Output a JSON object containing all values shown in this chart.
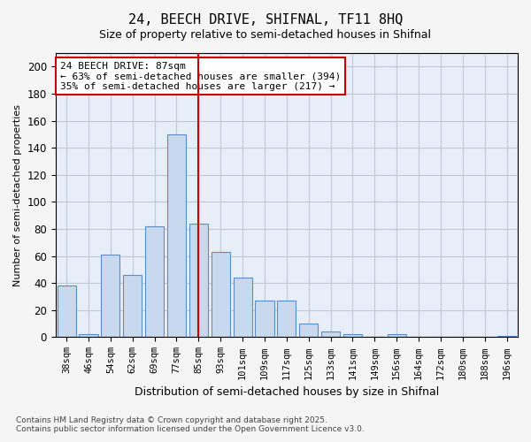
{
  "title_line1": "24, BEECH DRIVE, SHIFNAL, TF11 8HQ",
  "title_line2": "Size of property relative to semi-detached houses in Shifnal",
  "xlabel": "Distribution of semi-detached houses by size in Shifnal",
  "ylabel": "Number of semi-detached properties",
  "categories": [
    "38sqm",
    "46sqm",
    "54sqm",
    "62sqm",
    "69sqm",
    "77sqm",
    "85sqm",
    "93sqm",
    "101sqm",
    "109sqm",
    "117sqm",
    "125sqm",
    "133sqm",
    "141sqm",
    "149sqm",
    "156sqm",
    "164sqm",
    "172sqm",
    "180sqm",
    "188sqm",
    "196sqm"
  ],
  "values": [
    38,
    2,
    61,
    46,
    82,
    150,
    84,
    63,
    44,
    27,
    27,
    10,
    4,
    2,
    0,
    2,
    0,
    0,
    0,
    0,
    1
  ],
  "bar_color": "#c9d9ed",
  "bar_edge_color": "#5b8ec4",
  "vline_pos": 6.0,
  "vline_color": "#cc0000",
  "annotation_title": "24 BEECH DRIVE: 87sqm",
  "annotation_line2": "← 63% of semi-detached houses are smaller (394)",
  "annotation_line3": "35% of semi-detached houses are larger (217) →",
  "annotation_box_edgecolor": "#cc0000",
  "ylim": [
    0,
    210
  ],
  "yticks": [
    0,
    20,
    40,
    60,
    80,
    100,
    120,
    140,
    160,
    180,
    200
  ],
  "grid_color": "#c0c8d8",
  "background_color": "#e8eef7",
  "fig_facecolor": "#f5f5f5",
  "footnote_line1": "Contains HM Land Registry data © Crown copyright and database right 2025.",
  "footnote_line2": "Contains public sector information licensed under the Open Government Licence v3.0."
}
